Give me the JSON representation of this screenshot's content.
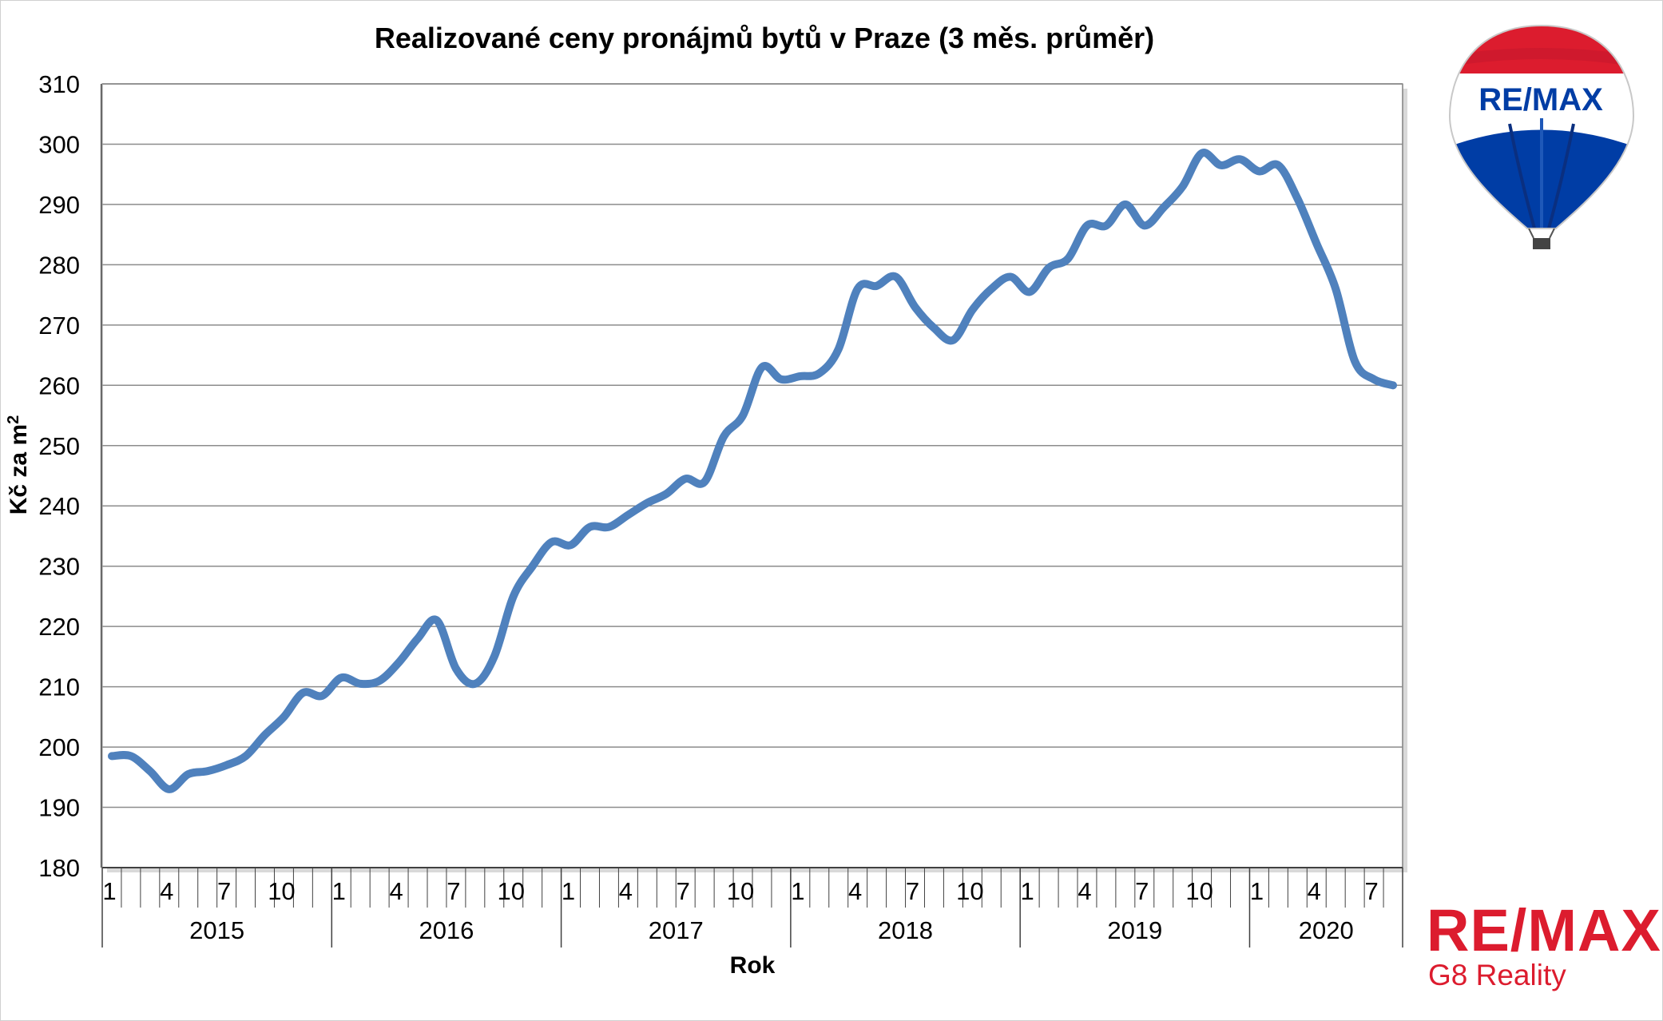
{
  "chart_data": {
    "type": "line",
    "title": "Realizované ceny pronájmů bytů v Praze (3 měs. průměr)",
    "xlabel": "Rok",
    "ylabel": "Kč za m",
    "ylabel_sup": "2",
    "ylim": [
      180,
      310
    ],
    "yticks": [
      180,
      190,
      200,
      210,
      220,
      230,
      240,
      250,
      260,
      270,
      280,
      290,
      300,
      310
    ],
    "month_ticks": [
      "1",
      "4",
      "7",
      "10"
    ],
    "years": [
      "2015",
      "2016",
      "2017",
      "2018",
      "2019",
      "2020"
    ],
    "grid": true,
    "line_color": "#4f81bd",
    "series": [
      {
        "values": [
          198.5,
          198.5,
          196,
          193,
          195.5,
          196,
          197,
          198.5,
          202,
          205,
          209,
          208.5,
          211.5,
          210.5,
          211,
          214,
          218,
          221,
          213,
          210.5,
          215,
          225,
          230,
          234,
          233.5,
          236.5,
          236.5,
          238.5,
          240.5,
          242,
          244.5,
          244,
          251.5,
          255,
          263,
          261,
          261.5,
          262,
          266,
          276,
          276.5,
          278,
          273,
          269.5,
          267.5,
          272.5,
          276,
          278,
          275.5,
          279.5,
          281,
          286.5,
          286.5,
          290,
          286.5,
          289.5,
          293,
          298.5,
          296.5,
          297.5,
          295.5,
          296.5,
          291,
          283.5,
          276,
          264,
          261,
          260
        ]
      }
    ]
  },
  "logo": {
    "balloon_text": "RE/MAX",
    "brand_name": "RE/MAX",
    "brand_sub": "G8 Reality",
    "colors": {
      "red": "#dc1c2e",
      "blue": "#003da5",
      "white": "#ffffff"
    }
  }
}
